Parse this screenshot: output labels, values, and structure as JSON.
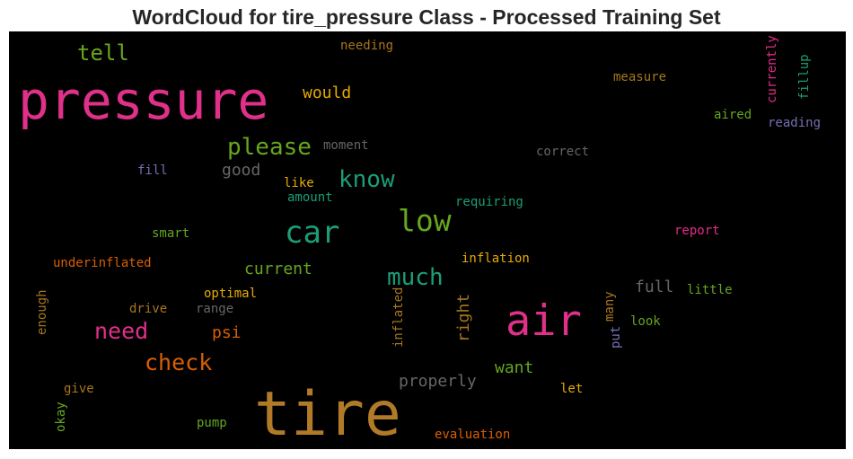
{
  "chart_data": {
    "type": "wordcloud",
    "title": "WordCloud for tire_pressure Class - Processed Training Set",
    "words": [
      {
        "text": "tire",
        "color": "#b07a28"
      },
      {
        "text": "pressure",
        "color": "#e0308a"
      },
      {
        "text": "air",
        "color": "#e0308a"
      },
      {
        "text": "car",
        "color": "#1b9e77"
      },
      {
        "text": "low",
        "color": "#66a61e"
      },
      {
        "text": "know",
        "color": "#1b9e77"
      },
      {
        "text": "please",
        "color": "#66a61e"
      },
      {
        "text": "much",
        "color": "#1b9e77"
      },
      {
        "text": "need",
        "color": "#e0308a"
      },
      {
        "text": "check",
        "color": "#d95f02"
      },
      {
        "text": "tell",
        "color": "#66a61e"
      },
      {
        "text": "would",
        "color": "#e6ab02"
      },
      {
        "text": "properly",
        "color": "#666666"
      },
      {
        "text": "good",
        "color": "#666666"
      },
      {
        "text": "current",
        "color": "#66a61e"
      },
      {
        "text": "full",
        "color": "#666666"
      },
      {
        "text": "want",
        "color": "#66a61e"
      },
      {
        "text": "psi",
        "color": "#d95f02"
      },
      {
        "text": "right",
        "color": "#a6761d"
      },
      {
        "text": "needing",
        "color": "#a6761d"
      },
      {
        "text": "measure",
        "color": "#a6761d"
      },
      {
        "text": "moment",
        "color": "#666666"
      },
      {
        "text": "correct",
        "color": "#666666"
      },
      {
        "text": "aired",
        "color": "#66a61e"
      },
      {
        "text": "reading",
        "color": "#7570b3"
      },
      {
        "text": "fill",
        "color": "#7570b3"
      },
      {
        "text": "like",
        "color": "#e6ab02"
      },
      {
        "text": "amount",
        "color": "#1b9e77"
      },
      {
        "text": "requiring",
        "color": "#1b9e77"
      },
      {
        "text": "smart",
        "color": "#66a61e"
      },
      {
        "text": "report",
        "color": "#e7298a"
      },
      {
        "text": "underinflated",
        "color": "#d95f02"
      },
      {
        "text": "inflation",
        "color": "#e6ab02"
      },
      {
        "text": "optimal",
        "color": "#e6ab02"
      },
      {
        "text": "drive",
        "color": "#a6761d"
      },
      {
        "text": "range",
        "color": "#666666"
      },
      {
        "text": "little",
        "color": "#66a61e"
      },
      {
        "text": "look",
        "color": "#66a61e"
      },
      {
        "text": "give",
        "color": "#a6761d"
      },
      {
        "text": "let",
        "color": "#e6ab02"
      },
      {
        "text": "pump",
        "color": "#66a61e"
      },
      {
        "text": "evaluation",
        "color": "#d95f02"
      },
      {
        "text": "okay",
        "color": "#66a61e"
      },
      {
        "text": "enough",
        "color": "#a6761d"
      },
      {
        "text": "inflated",
        "color": "#a6761d"
      },
      {
        "text": "many",
        "color": "#a6761d"
      },
      {
        "text": "put",
        "color": "#7570b3"
      },
      {
        "text": "currently",
        "color": "#e7298a"
      },
      {
        "text": "fillup",
        "color": "#1b9e77"
      }
    ]
  }
}
